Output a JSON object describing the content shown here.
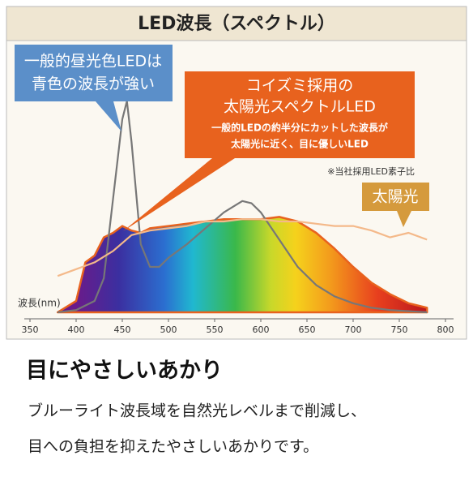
{
  "chart_data": {
    "type": "line",
    "title": "LED波長（スペクトル）",
    "xlabel": "波長(nm)",
    "xlim": [
      350,
      800
    ],
    "xticks": [
      350,
      400,
      450,
      500,
      550,
      600,
      650,
      700,
      750,
      800
    ],
    "ylim": [
      0,
      100
    ],
    "series": [
      {
        "color": "#e8621e",
        "fill": "spectrum",
        "x": [
          380,
          400,
          410,
          420,
          430,
          440,
          450,
          460,
          470,
          480,
          500,
          520,
          540,
          560,
          580,
          600,
          620,
          640,
          660,
          680,
          700,
          720,
          740,
          760,
          780
        ],
        "values": [
          0,
          5,
          22,
          25,
          33,
          35,
          38,
          36,
          35,
          37,
          38,
          39,
          40,
          41,
          41,
          41,
          42,
          40,
          35,
          28,
          20,
          13,
          8,
          4,
          2
        ]
      },
      {
        "color": "#777777",
        "x": [
          380,
          400,
          420,
          430,
          440,
          450,
          455,
          460,
          470,
          480,
          490,
          500,
          520,
          540,
          560,
          580,
          590,
          600,
          620,
          640,
          660,
          680,
          700,
          720,
          740,
          780
        ],
        "values": [
          0,
          1,
          5,
          15,
          50,
          85,
          93,
          75,
          30,
          20,
          20,
          24,
          30,
          37,
          44,
          49,
          48,
          44,
          32,
          20,
          12,
          7,
          4,
          2,
          1,
          0
        ]
      },
      {
        "color": "#f4b98a",
        "x": [
          380,
          400,
          420,
          440,
          460,
          480,
          500,
          520,
          540,
          560,
          580,
          600,
          620,
          640,
          660,
          680,
          700,
          720,
          740,
          760,
          780
        ],
        "values": [
          16,
          19,
          22,
          27,
          34,
          36,
          37,
          38,
          40,
          40,
          41,
          41,
          40,
          40,
          39,
          38,
          38,
          36,
          33,
          35,
          32
        ]
      }
    ],
    "annotations": [
      {
        "lines": [
          "一般的昼光色LEDは",
          "青色の波長が強い"
        ]
      },
      {
        "lines": [
          "コイズミ採用の",
          "太陽光スペクトルLED",
          "一般的LEDの約半分にカットした波長が",
          "太陽光に近く、目に優しいLED"
        ]
      },
      {
        "lines": [
          "※当社採用LED素子比"
        ]
      },
      {
        "lines": [
          "太陽光"
        ]
      }
    ]
  },
  "caption": {
    "heading": "目にやさしいあかり",
    "body": [
      "ブルーライト波長域を自然光レベルまで削減し、",
      "目への負担を抑えたやさしいあかりです。"
    ]
  }
}
